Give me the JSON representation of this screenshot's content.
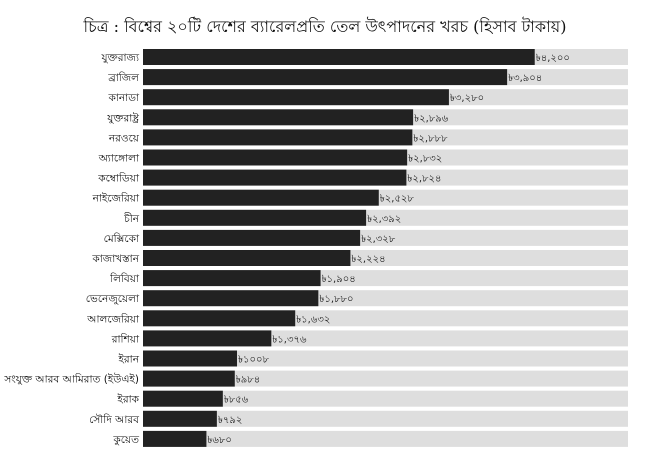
{
  "chart_data": {
    "type": "bar",
    "orientation": "horizontal",
    "title": "চিত্র : বিশ্বের ২০টি দেশের ব্যারেলপ্রতি তেল উৎপাদনের খরচ (হিসাব টাকায়)",
    "xlabel": "",
    "ylabel": "",
    "xlim": [
      0,
      5200
    ],
    "grid": false,
    "legend": "none",
    "categories": [
      "যুক্তরাজ্য",
      "ব্রাজিল",
      "কানাডা",
      "যুক্তরাষ্ট্র",
      "নরওয়ে",
      "অ্যাঙ্গোলা",
      "কম্বোডিয়া",
      "নাইজেরিয়া",
      "চীন",
      "মেক্সিকো",
      "কাজাখস্তান",
      "লিবিয়া",
      "ভেনেজুয়েলা",
      "আলজেরিয়া",
      "রাশিয়া",
      "ইরান",
      "সংযুক্ত আরব আমিরাত (ইউএই)",
      "ইরাক",
      "সৌদি আরব",
      "কুয়েত"
    ],
    "values": [
      4200,
      3904,
      3280,
      2896,
      2888,
      2832,
      2824,
      2528,
      2392,
      2328,
      2224,
      1904,
      1880,
      1632,
      1376,
      1008,
      984,
      856,
      792,
      680
    ],
    "value_labels": [
      "৳৪,২০০",
      "৳৩,৯০৪",
      "৳৩,২৮০",
      "৳২,৮৯৬",
      "৳২,৮৮৮",
      "৳২,৮৩২",
      "৳২,৮২৪",
      "৳২,৫২৮",
      "৳২,৩৯২",
      "৳২,৩২৮",
      "৳২,২২৪",
      "৳১,৯০৪",
      "৳১,৮৮০",
      "৳১,৬৩২",
      "৳১,৩৭৬",
      "৳১০০৮",
      "৳৯৮৪",
      "৳৮৫৬",
      "৳৭৯২",
      "৳৬৮০"
    ],
    "colors": {
      "bar": "#222222",
      "track": "#dedede",
      "text": "#111111"
    }
  }
}
